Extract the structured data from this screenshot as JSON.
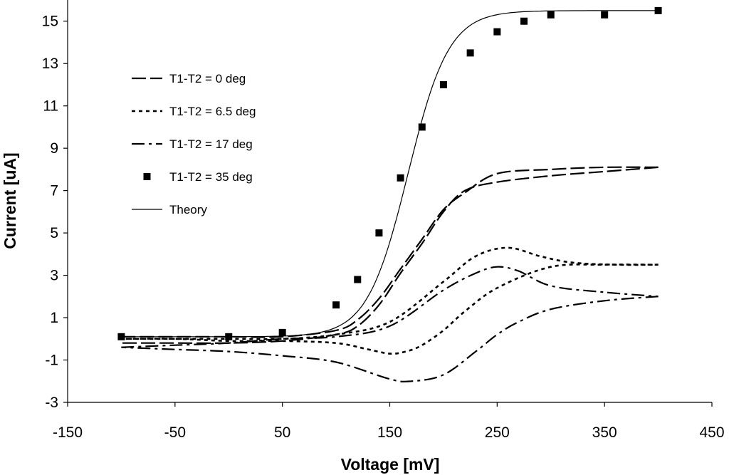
{
  "chart_data": {
    "type": "line",
    "title": "",
    "xlabel": "Voltage [mV]",
    "ylabel": "Current [uA]",
    "xlim": [
      -150,
      450
    ],
    "ylim": [
      -3,
      16
    ],
    "xticks": [
      -150,
      -50,
      50,
      150,
      250,
      350,
      450
    ],
    "yticks": [
      -3,
      -1,
      1,
      3,
      5,
      7,
      9,
      11,
      13,
      15
    ],
    "legend_position": "upper-left",
    "series": [
      {
        "name": "T1-T2 = 0 deg",
        "style": "long-dash",
        "x": [
          -100,
          -50,
          0,
          50,
          100,
          120,
          140,
          160,
          180,
          200,
          220,
          250,
          300,
          350,
          400
        ],
        "y": [
          0.1,
          0.1,
          0.1,
          0.1,
          0.4,
          0.9,
          1.9,
          3.3,
          4.7,
          6.1,
          6.9,
          7.8,
          8.0,
          8.1,
          8.1
        ],
        "x2": [
          400,
          350,
          300,
          250,
          220,
          200,
          180,
          160,
          140,
          120,
          100,
          50,
          0,
          -50,
          -100
        ],
        "y2": [
          8.1,
          7.9,
          7.7,
          7.4,
          7.0,
          6.0,
          4.5,
          3.1,
          1.6,
          0.6,
          0.2,
          -0.1,
          -0.2,
          -0.2,
          -0.2
        ]
      },
      {
        "name": "T1-T2 = 6.5 deg",
        "style": "dotted",
        "x": [
          -100,
          -50,
          0,
          50,
          100,
          150,
          200,
          230,
          260,
          290,
          320,
          360,
          400
        ],
        "y": [
          0.0,
          0.0,
          0.0,
          0.0,
          0.2,
          0.8,
          2.7,
          3.9,
          4.3,
          3.9,
          3.6,
          3.5,
          3.5
        ],
        "x2": [
          400,
          350,
          300,
          250,
          220,
          200,
          180,
          165,
          150,
          130,
          100,
          50,
          0,
          -50,
          -100
        ],
        "y2": [
          3.5,
          3.5,
          3.4,
          2.4,
          1.3,
          0.4,
          -0.3,
          -0.6,
          -0.7,
          -0.5,
          -0.2,
          -0.1,
          -0.1,
          0.0,
          0.0
        ]
      },
      {
        "name": "T1-T2 = 17 deg",
        "style": "dash-dot",
        "x": [
          -100,
          -50,
          0,
          50,
          100,
          150,
          200,
          230,
          250,
          270,
          300,
          350,
          400
        ],
        "y": [
          -0.4,
          -0.3,
          -0.2,
          0.0,
          0.1,
          0.6,
          2.3,
          3.1,
          3.4,
          3.2,
          2.5,
          2.2,
          2.0
        ],
        "x2": [
          400,
          350,
          300,
          270,
          250,
          230,
          200,
          170,
          150,
          100,
          50,
          0,
          -50,
          -100
        ],
        "y2": [
          2.0,
          1.8,
          1.4,
          0.8,
          0.2,
          -0.6,
          -1.7,
          -2.0,
          -1.9,
          -1.1,
          -0.8,
          -0.6,
          -0.5,
          -0.4
        ]
      },
      {
        "name": "T1-T2 = 35 deg",
        "style": "markers",
        "x": [
          -100,
          0,
          50,
          100,
          120,
          140,
          160,
          180,
          200,
          225,
          250,
          275,
          300,
          350,
          400
        ],
        "y": [
          0.1,
          0.1,
          0.3,
          1.6,
          2.8,
          5.0,
          7.6,
          10.0,
          12.0,
          13.5,
          14.5,
          15.0,
          15.3,
          15.3,
          15.5
        ]
      },
      {
        "name": "Theory",
        "style": "solid-thin",
        "curve": "sigmoid",
        "x_range": [
          -100,
          400
        ]
      }
    ]
  }
}
